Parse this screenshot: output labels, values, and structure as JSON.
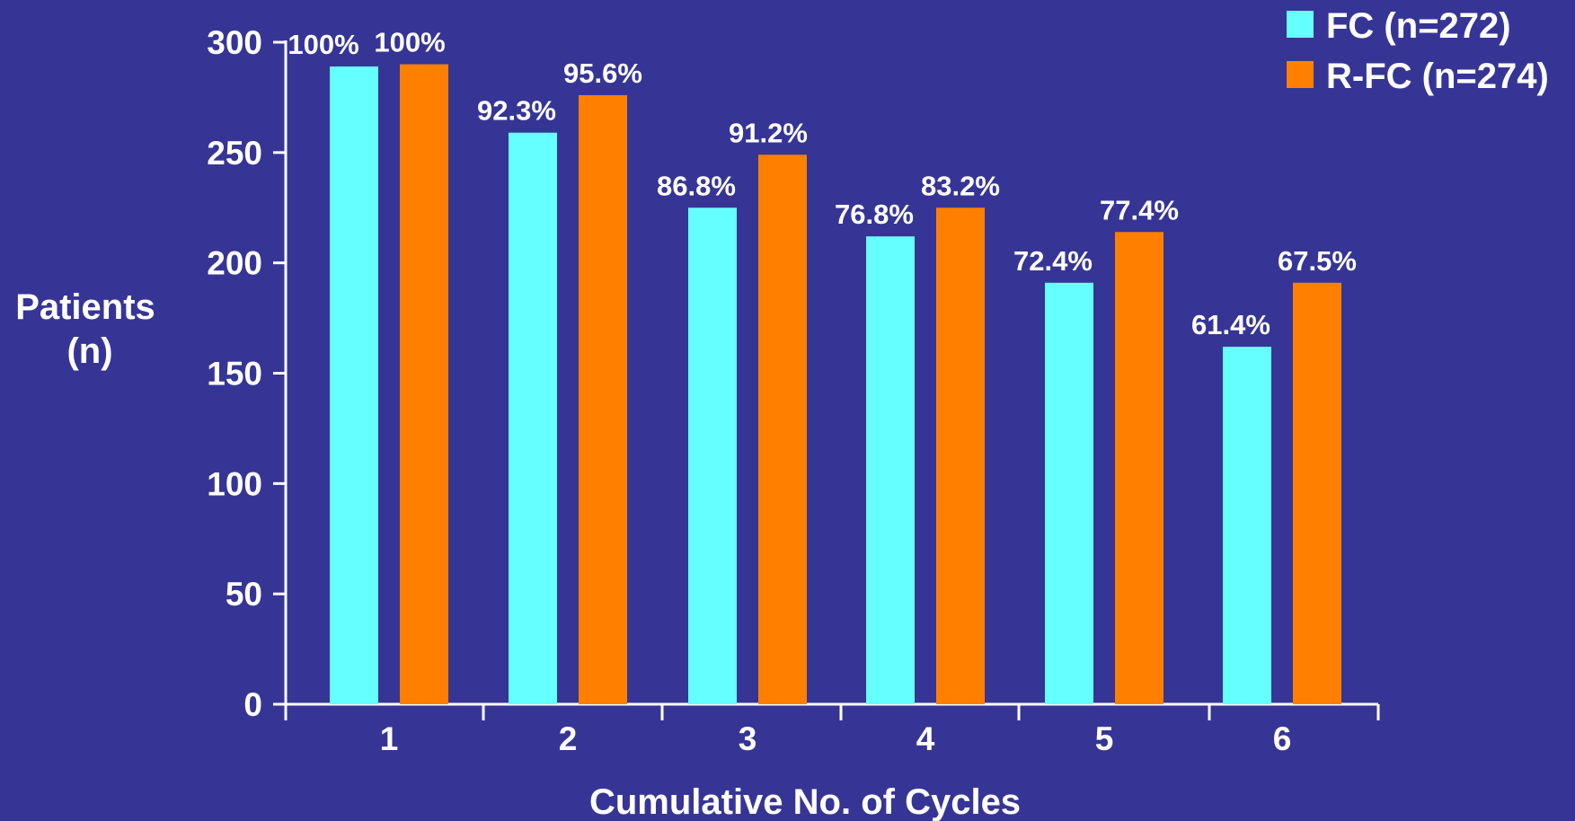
{
  "chart_data": {
    "type": "bar",
    "categories": [
      "1",
      "2",
      "3",
      "4",
      "5",
      "6"
    ],
    "series": [
      {
        "name": "FC (n=272)",
        "color": "#66ffff",
        "values": [
          289,
          259,
          225,
          212,
          191,
          162
        ],
        "labels": [
          "100%",
          "92.3%",
          "86.8%",
          "76.8%",
          "72.4%",
          "61.4%"
        ]
      },
      {
        "name": "R-FC (n=274)",
        "color": "#ff8000",
        "values": [
          290,
          276,
          249,
          225,
          214,
          191
        ],
        "labels": [
          "100%",
          "95.6%",
          "91.2%",
          "83.2%",
          "77.4%",
          "67.5%"
        ]
      }
    ],
    "xlabel": "Cumulative No. of Cycles",
    "ylabel_lines": [
      "Patients",
      "(n)"
    ],
    "ylim": [
      0,
      300
    ],
    "yticks": [
      0,
      50,
      100,
      150,
      200,
      250,
      300
    ],
    "grid": false,
    "legend_position": "top-right",
    "background": "#363596"
  }
}
